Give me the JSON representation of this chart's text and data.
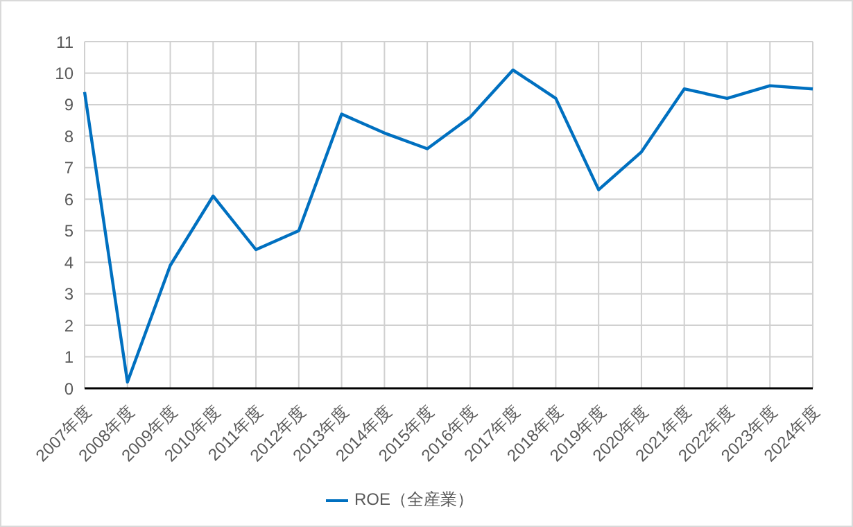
{
  "chart_data": {
    "type": "line",
    "categories": [
      "2007年度",
      "2008年度",
      "2009年度",
      "2010年度",
      "2011年度",
      "2012年度",
      "2013年度",
      "2014年度",
      "2015年度",
      "2016年度",
      "2017年度",
      "2018年度",
      "2019年度",
      "2020年度",
      "2021年度",
      "2022年度",
      "2023年度",
      "2024年度"
    ],
    "series": [
      {
        "name": "ROE（全産業）",
        "color": "#0070c0",
        "values": [
          9.4,
          0.2,
          3.9,
          6.1,
          4.4,
          5.0,
          8.7,
          8.1,
          7.6,
          8.6,
          10.1,
          9.2,
          6.3,
          7.5,
          9.5,
          9.2,
          9.6,
          9.5
        ]
      }
    ],
    "ylim": [
      0,
      11
    ],
    "yticks": [
      0,
      1,
      2,
      3,
      4,
      5,
      6,
      7,
      8,
      9,
      10,
      11
    ],
    "grid": true,
    "legend": "bottom",
    "marker": "none",
    "line_style": "solid"
  }
}
